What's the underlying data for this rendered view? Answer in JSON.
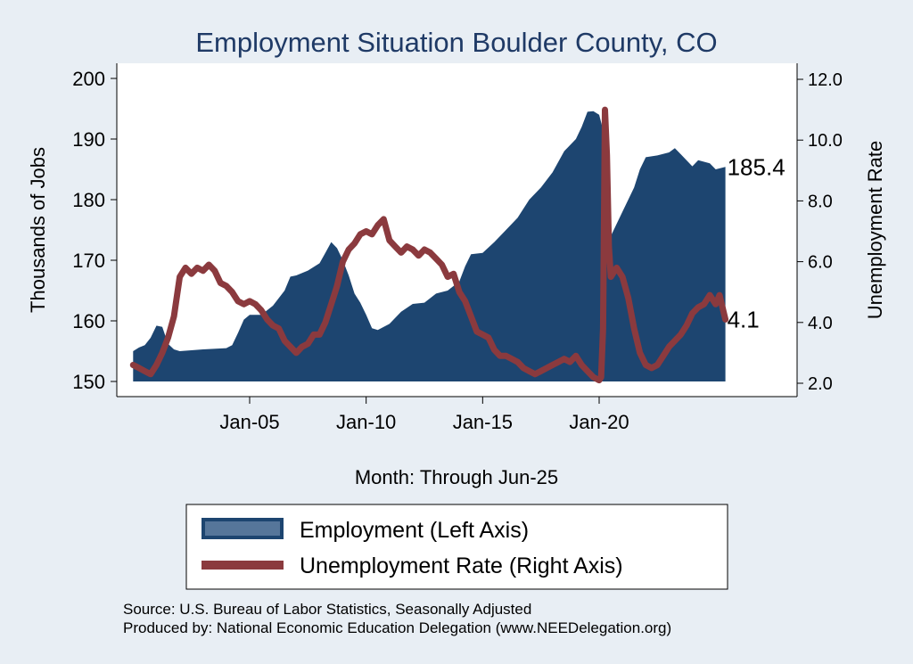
{
  "chart_data": {
    "type": "area",
    "title": "Employment Situation Boulder  County, CO",
    "xlabel": "Month: Through Jun-25",
    "ylabel_left": "Thousands of Jobs",
    "ylabel_right": "Unemployment Rate",
    "x_ticks": [
      "Jan-05",
      "Jan-10",
      "Jan-15",
      "Jan-20"
    ],
    "y_left_range": [
      150,
      200
    ],
    "y_left_ticks": [
      "150",
      "160",
      "170",
      "180",
      "190",
      "200"
    ],
    "y_right_range": [
      2.0,
      12.0
    ],
    "y_right_ticks": [
      "2.0",
      "4.0",
      "6.0",
      "8.0",
      "10.0",
      "12.0"
    ],
    "legend_position": "bottom",
    "series": [
      {
        "name": "Employment (Left Axis)",
        "axis": "left",
        "style": "area",
        "color": "#1d4570",
        "last_label": "185.4",
        "points": [
          [
            "2000-01",
            155.0
          ],
          [
            "2000-04",
            155.6
          ],
          [
            "2000-07",
            156.0
          ],
          [
            "2000-10",
            157.2
          ],
          [
            "2001-01",
            159.2
          ],
          [
            "2001-04",
            159.0
          ],
          [
            "2001-07",
            156.2
          ],
          [
            "2001-10",
            155.3
          ],
          [
            "2002-01",
            155.0
          ],
          [
            "2003-01",
            155.3
          ],
          [
            "2004-01",
            155.5
          ],
          [
            "2004-04",
            156.0
          ],
          [
            "2004-07",
            158.0
          ],
          [
            "2004-10",
            160.2
          ],
          [
            "2005-01",
            161.0
          ],
          [
            "2005-07",
            161.0
          ],
          [
            "2006-01",
            162.5
          ],
          [
            "2006-07",
            165.0
          ],
          [
            "2006-10",
            167.3
          ],
          [
            "2007-01",
            167.5
          ],
          [
            "2007-07",
            168.3
          ],
          [
            "2008-01",
            169.5
          ],
          [
            "2008-04",
            171.2
          ],
          [
            "2008-07",
            173.0
          ],
          [
            "2008-10",
            172.0
          ],
          [
            "2009-01",
            170.0
          ],
          [
            "2009-04",
            167.5
          ],
          [
            "2009-07",
            164.5
          ],
          [
            "2009-10",
            163.0
          ],
          [
            "2010-01",
            161.0
          ],
          [
            "2010-04",
            158.8
          ],
          [
            "2010-07",
            158.5
          ],
          [
            "2011-01",
            159.5
          ],
          [
            "2011-07",
            161.5
          ],
          [
            "2012-01",
            162.8
          ],
          [
            "2012-07",
            163.0
          ],
          [
            "2013-01",
            164.5
          ],
          [
            "2013-07",
            165.0
          ],
          [
            "2014-01",
            166.5
          ],
          [
            "2014-04",
            169.0
          ],
          [
            "2014-07",
            171.0
          ],
          [
            "2015-01",
            171.2
          ],
          [
            "2015-07",
            173.0
          ],
          [
            "2016-01",
            175.0
          ],
          [
            "2016-07",
            177.0
          ],
          [
            "2017-01",
            180.0
          ],
          [
            "2017-07",
            182.0
          ],
          [
            "2018-01",
            184.5
          ],
          [
            "2018-07",
            188.0
          ],
          [
            "2019-01",
            190.0
          ],
          [
            "2019-04",
            192.0
          ],
          [
            "2019-07",
            194.5
          ],
          [
            "2019-10",
            194.6
          ],
          [
            "2020-01",
            194.0
          ],
          [
            "2020-03",
            191.5
          ],
          [
            "2020-04",
            170.0
          ],
          [
            "2020-07",
            174.0
          ],
          [
            "2021-01",
            178.0
          ],
          [
            "2021-07",
            182.0
          ],
          [
            "2021-10",
            185.0
          ],
          [
            "2022-01",
            187.0
          ],
          [
            "2022-07",
            187.3
          ],
          [
            "2023-01",
            187.8
          ],
          [
            "2023-04",
            188.5
          ],
          [
            "2023-07",
            187.5
          ],
          [
            "2024-01",
            185.5
          ],
          [
            "2024-04",
            186.5
          ],
          [
            "2024-10",
            186.0
          ],
          [
            "2025-01",
            185.0
          ],
          [
            "2025-06",
            185.4
          ]
        ]
      },
      {
        "name": "Unemployment Rate (Right Axis)",
        "axis": "right",
        "style": "line",
        "color": "#8b3a3e",
        "last_label": "4.1",
        "points": [
          [
            "2000-01",
            2.6
          ],
          [
            "2000-04",
            2.5
          ],
          [
            "2000-07",
            2.4
          ],
          [
            "2000-10",
            2.3
          ],
          [
            "2001-01",
            2.6
          ],
          [
            "2001-04",
            3.0
          ],
          [
            "2001-07",
            3.5
          ],
          [
            "2001-10",
            4.2
          ],
          [
            "2002-01",
            5.5
          ],
          [
            "2002-04",
            5.8
          ],
          [
            "2002-07",
            5.6
          ],
          [
            "2002-10",
            5.8
          ],
          [
            "2003-01",
            5.7
          ],
          [
            "2003-04",
            5.9
          ],
          [
            "2003-07",
            5.7
          ],
          [
            "2003-10",
            5.3
          ],
          [
            "2004-01",
            5.2
          ],
          [
            "2004-04",
            5.0
          ],
          [
            "2004-07",
            4.7
          ],
          [
            "2004-10",
            4.6
          ],
          [
            "2005-01",
            4.7
          ],
          [
            "2005-04",
            4.6
          ],
          [
            "2005-07",
            4.4
          ],
          [
            "2005-10",
            4.1
          ],
          [
            "2006-01",
            3.9
          ],
          [
            "2006-04",
            3.8
          ],
          [
            "2006-07",
            3.4
          ],
          [
            "2006-10",
            3.2
          ],
          [
            "2007-01",
            3.0
          ],
          [
            "2007-04",
            3.2
          ],
          [
            "2007-07",
            3.3
          ],
          [
            "2007-10",
            3.6
          ],
          [
            "2008-01",
            3.6
          ],
          [
            "2008-04",
            4.0
          ],
          [
            "2008-07",
            4.6
          ],
          [
            "2008-10",
            5.2
          ],
          [
            "2009-01",
            6.0
          ],
          [
            "2009-04",
            6.4
          ],
          [
            "2009-07",
            6.6
          ],
          [
            "2009-10",
            6.9
          ],
          [
            "2010-01",
            7.0
          ],
          [
            "2010-04",
            6.9
          ],
          [
            "2010-07",
            7.2
          ],
          [
            "2010-10",
            7.4
          ],
          [
            "2011-01",
            6.7
          ],
          [
            "2011-04",
            6.5
          ],
          [
            "2011-07",
            6.3
          ],
          [
            "2011-10",
            6.5
          ],
          [
            "2012-01",
            6.4
          ],
          [
            "2012-04",
            6.2
          ],
          [
            "2012-07",
            6.4
          ],
          [
            "2012-10",
            6.3
          ],
          [
            "2013-01",
            6.1
          ],
          [
            "2013-04",
            5.9
          ],
          [
            "2013-07",
            5.5
          ],
          [
            "2013-10",
            5.6
          ],
          [
            "2014-01",
            5.0
          ],
          [
            "2014-04",
            4.7
          ],
          [
            "2014-07",
            4.2
          ],
          [
            "2014-10",
            3.7
          ],
          [
            "2015-01",
            3.6
          ],
          [
            "2015-04",
            3.5
          ],
          [
            "2015-07",
            3.1
          ],
          [
            "2015-10",
            2.9
          ],
          [
            "2016-01",
            2.9
          ],
          [
            "2016-04",
            2.8
          ],
          [
            "2016-07",
            2.7
          ],
          [
            "2016-10",
            2.5
          ],
          [
            "2017-01",
            2.4
          ],
          [
            "2017-04",
            2.3
          ],
          [
            "2017-07",
            2.4
          ],
          [
            "2017-10",
            2.5
          ],
          [
            "2018-01",
            2.6
          ],
          [
            "2018-04",
            2.7
          ],
          [
            "2018-07",
            2.8
          ],
          [
            "2018-10",
            2.7
          ],
          [
            "2019-01",
            2.9
          ],
          [
            "2019-04",
            2.6
          ],
          [
            "2019-07",
            2.4
          ],
          [
            "2019-10",
            2.2
          ],
          [
            "2020-01",
            2.1
          ],
          [
            "2020-02",
            2.2
          ],
          [
            "2020-03",
            3.8
          ],
          [
            "2020-04",
            11.0
          ],
          [
            "2020-05",
            9.5
          ],
          [
            "2020-06",
            6.5
          ],
          [
            "2020-07",
            5.5
          ],
          [
            "2020-10",
            5.8
          ],
          [
            "2021-01",
            5.5
          ],
          [
            "2021-04",
            4.8
          ],
          [
            "2021-07",
            3.8
          ],
          [
            "2021-10",
            3.0
          ],
          [
            "2022-01",
            2.6
          ],
          [
            "2022-04",
            2.5
          ],
          [
            "2022-07",
            2.6
          ],
          [
            "2022-10",
            2.9
          ],
          [
            "2023-01",
            3.2
          ],
          [
            "2023-04",
            3.4
          ],
          [
            "2023-07",
            3.6
          ],
          [
            "2023-10",
            3.9
          ],
          [
            "2024-01",
            4.3
          ],
          [
            "2024-04",
            4.5
          ],
          [
            "2024-07",
            4.6
          ],
          [
            "2024-10",
            4.9
          ],
          [
            "2025-01",
            4.6
          ],
          [
            "2025-03",
            4.9
          ],
          [
            "2025-06",
            4.1
          ]
        ]
      }
    ]
  },
  "source_note": "Source: U.S. Bureau of Labor Statistics, Seasonally Adjusted",
  "produced_note": "Produced by: National Economic Education Delegation (www.NEEDelegation.org)",
  "colors": {
    "background": "#e8eef4",
    "plot_background": "#ffffff",
    "employment": "#1d4570",
    "unemployment": "#8b3a3e",
    "title": "#1f3a66"
  }
}
